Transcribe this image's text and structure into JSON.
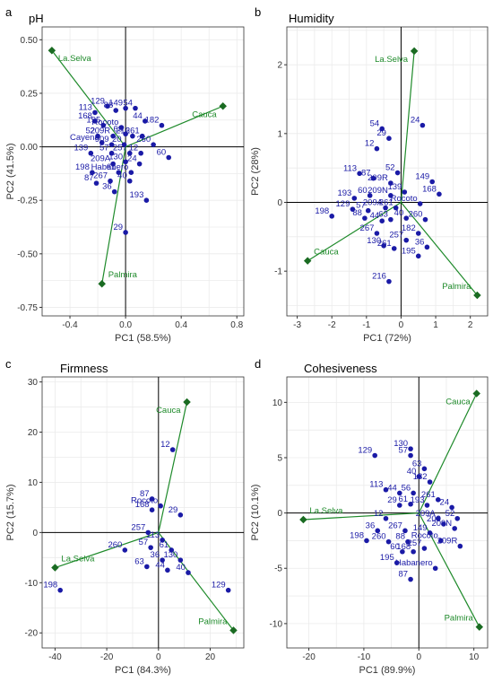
{
  "colors": {
    "points": "#1a1aa6",
    "vectors": "#1e8a2a",
    "grid": "#ebebeb",
    "axis": "#000000"
  },
  "chart_data": [
    {
      "type": "scatter",
      "panel": "a",
      "title": "pH",
      "xlabel": "PC1 (58.5%)",
      "ylabel": "PC2 (41.5%)",
      "xlim": [
        -0.6,
        0.85
      ],
      "ylim": [
        -0.79,
        0.56
      ],
      "xticks": [
        -0.4,
        0.0,
        0.4,
        0.8
      ],
      "xtick_labels": [
        "-0.4",
        "0.0",
        "0.4",
        "0.8"
      ],
      "yticks": [
        -0.75,
        -0.5,
        -0.25,
        0.0,
        0.25,
        0.5
      ],
      "ytick_labels": [
        "-0.75",
        "-0.50",
        "-0.25",
        "0.00",
        "0.25",
        "0.50"
      ],
      "points": [
        {
          "label": "113",
          "x": -0.22,
          "y": 0.16
        },
        {
          "label": "129",
          "x": -0.13,
          "y": 0.19
        },
        {
          "label": "168",
          "x": -0.22,
          "y": 0.12
        },
        {
          "label": "88",
          "x": -0.07,
          "y": 0.17
        },
        {
          "label": "149",
          "x": 0.0,
          "y": 0.18
        },
        {
          "label": "54",
          "x": 0.07,
          "y": 0.18
        },
        {
          "label": "44",
          "x": 0.14,
          "y": 0.12
        },
        {
          "label": "195",
          "x": -0.16,
          "y": 0.1
        },
        {
          "label": "Rocoto",
          "x": -0.03,
          "y": 0.09
        },
        {
          "label": "182",
          "x": 0.26,
          "y": 0.1
        },
        {
          "label": "52",
          "x": -0.2,
          "y": 0.05
        },
        {
          "label": "209R",
          "x": -0.09,
          "y": 0.05
        },
        {
          "label": "63",
          "x": 0.0,
          "y": 0.06
        },
        {
          "label": "216",
          "x": 0.05,
          "y": 0.05
        },
        {
          "label": "261",
          "x": 0.12,
          "y": 0.05
        },
        {
          "label": "Cayena",
          "x": -0.17,
          "y": 0.02
        },
        {
          "label": "909",
          "x": -0.1,
          "y": 0.01
        },
        {
          "label": "20",
          "x": -0.01,
          "y": 0.01
        },
        {
          "label": "260",
          "x": 0.2,
          "y": 0.01
        },
        {
          "label": "139",
          "x": -0.25,
          "y": -0.03
        },
        {
          "label": "57",
          "x": -0.1,
          "y": -0.03
        },
        {
          "label": "257",
          "x": 0.03,
          "y": -0.03
        },
        {
          "label": "12",
          "x": 0.11,
          "y": -0.03
        },
        {
          "label": "60",
          "x": 0.31,
          "y": -0.05
        },
        {
          "label": "209A",
          "x": -0.09,
          "y": -0.08
        },
        {
          "label": "130",
          "x": 0.0,
          "y": -0.07
        },
        {
          "label": "24",
          "x": 0.1,
          "y": -0.08
        },
        {
          "label": "198",
          "x": -0.24,
          "y": -0.12
        },
        {
          "label": "61",
          "x": -0.05,
          "y": -0.12
        },
        {
          "label": "Habanero",
          "x": 0.04,
          "y": -0.12
        },
        {
          "label": "87",
          "x": -0.21,
          "y": -0.17
        },
        {
          "label": "267",
          "x": -0.11,
          "y": -0.16
        },
        {
          "label": "40",
          "x": 0.03,
          "y": -0.16
        },
        {
          "label": "36",
          "x": -0.08,
          "y": -0.21
        },
        {
          "label": "193",
          "x": 0.15,
          "y": -0.25
        },
        {
          "label": "29",
          "x": 0.0,
          "y": -0.4
        }
      ],
      "vectors": [
        {
          "label": "La.Selva",
          "x": -0.53,
          "y": 0.45
        },
        {
          "label": "Cauca",
          "x": 0.7,
          "y": 0.19
        },
        {
          "label": "Palmira",
          "x": -0.17,
          "y": -0.64
        }
      ]
    },
    {
      "type": "scatter",
      "panel": "b",
      "title": "Humidity",
      "xlabel": "PC1 (72%)",
      "ylabel": "PC2 (28%)",
      "xlim": [
        -3.3,
        2.5
      ],
      "ylim": [
        -1.65,
        2.55
      ],
      "xticks": [
        -3,
        -2,
        -1,
        0,
        1,
        2
      ],
      "xtick_labels": [
        "-3",
        "-2",
        "-1",
        "0",
        "1",
        "2"
      ],
      "yticks": [
        -1,
        0,
        1,
        2
      ],
      "ytick_labels": [
        "-1",
        "0",
        "1",
        "2"
      ],
      "points": [
        {
          "label": "54",
          "x": -0.55,
          "y": 1.07
        },
        {
          "label": "29",
          "x": -0.35,
          "y": 0.93
        },
        {
          "label": "24",
          "x": 0.62,
          "y": 1.12
        },
        {
          "label": "12",
          "x": -0.7,
          "y": 0.78
        },
        {
          "label": "113",
          "x": -1.2,
          "y": 0.42
        },
        {
          "label": "52",
          "x": -0.1,
          "y": 0.43
        },
        {
          "label": "87",
          "x": -0.8,
          "y": 0.35
        },
        {
          "label": "209R",
          "x": -0.3,
          "y": 0.28
        },
        {
          "label": "149",
          "x": 0.9,
          "y": 0.3
        },
        {
          "label": "193",
          "x": -1.35,
          "y": 0.06
        },
        {
          "label": "60",
          "x": -0.9,
          "y": 0.1
        },
        {
          "label": "209N",
          "x": -0.3,
          "y": 0.1
        },
        {
          "label": "139",
          "x": 0.1,
          "y": 0.15
        },
        {
          "label": "168",
          "x": 1.1,
          "y": 0.12
        },
        {
          "label": "129",
          "x": -1.4,
          "y": -0.1
        },
        {
          "label": "57",
          "x": -0.95,
          "y": -0.12
        },
        {
          "label": "198",
          "x": -2.0,
          "y": -0.2
        },
        {
          "label": "88",
          "x": -1.05,
          "y": -0.23
        },
        {
          "label": "209A",
          "x": -0.45,
          "y": -0.08
        },
        {
          "label": "261",
          "x": -0.15,
          "y": -0.08
        },
        {
          "label": "Rocoto",
          "x": 0.55,
          "y": -0.02
        },
        {
          "label": "44",
          "x": -0.55,
          "y": -0.27
        },
        {
          "label": "63",
          "x": -0.3,
          "y": -0.25
        },
        {
          "label": "40",
          "x": 0.15,
          "y": -0.23
        },
        {
          "label": "260",
          "x": 0.7,
          "y": -0.25
        },
        {
          "label": "267",
          "x": -0.7,
          "y": -0.45
        },
        {
          "label": "182",
          "x": 0.5,
          "y": -0.45
        },
        {
          "label": "130",
          "x": -0.5,
          "y": -0.63
        },
        {
          "label": "257",
          "x": 0.15,
          "y": -0.55
        },
        {
          "label": "36",
          "x": 0.75,
          "y": -0.65
        },
        {
          "label": "261",
          "x": -0.2,
          "y": -0.67
        },
        {
          "label": "195",
          "x": 0.5,
          "y": -0.78
        },
        {
          "label": "216",
          "x": -0.35,
          "y": -1.15
        }
      ],
      "vectors": [
        {
          "label": "La.Selva",
          "x": 0.38,
          "y": 2.2
        },
        {
          "label": "Cauca",
          "x": -2.7,
          "y": -0.85
        },
        {
          "label": "Palmira",
          "x": 2.2,
          "y": -1.35
        }
      ]
    },
    {
      "type": "scatter",
      "panel": "c",
      "title": "Firmness",
      "xlabel": "PC1 (84.3%)",
      "ylabel": "PC2 (15.7%)",
      "xlim": [
        -45,
        33
      ],
      "ylim": [
        -23,
        31
      ],
      "xticks": [
        -40,
        -20,
        0,
        20
      ],
      "xtick_labels": [
        "-40",
        "-20",
        "0",
        "20"
      ],
      "yticks": [
        -20,
        -10,
        0,
        10,
        20,
        30
      ],
      "ytick_labels": [
        "-20",
        "-10",
        "0",
        "10",
        "20",
        "30"
      ],
      "points": [
        {
          "label": "12",
          "x": 5.5,
          "y": 16.5
        },
        {
          "label": "87",
          "x": -2.5,
          "y": 6.7
        },
        {
          "label": "Rocoto",
          "x": 0.8,
          "y": 5.3
        },
        {
          "label": "168",
          "x": -2.5,
          "y": 4.5
        },
        {
          "label": "29",
          "x": 8.5,
          "y": 3.5
        },
        {
          "label": "257",
          "x": -4.0,
          "y": 0.0
        },
        {
          "label": "113",
          "x": 1.5,
          "y": -1.5
        },
        {
          "label": "260",
          "x": -13.0,
          "y": -3.5
        },
        {
          "label": "57",
          "x": -3.0,
          "y": -3.0
        },
        {
          "label": "61",
          "x": 5.0,
          "y": -3.5
        },
        {
          "label": "36",
          "x": 1.5,
          "y": -5.5
        },
        {
          "label": "130",
          "x": 8.5,
          "y": -5.5
        },
        {
          "label": "63",
          "x": -4.5,
          "y": -6.8
        },
        {
          "label": "44",
          "x": 3.5,
          "y": -7.5
        },
        {
          "label": "40",
          "x": 11.5,
          "y": -8.0
        },
        {
          "label": "129",
          "x": 27.0,
          "y": -11.5
        },
        {
          "label": "198",
          "x": -38.0,
          "y": -11.5
        }
      ],
      "vectors": [
        {
          "label": "Cauca",
          "x": 11.0,
          "y": 26.0
        },
        {
          "label": "La.Selva",
          "x": -40.0,
          "y": -7.0
        },
        {
          "label": "Palmira",
          "x": 29.0,
          "y": -19.5
        }
      ]
    },
    {
      "type": "scatter",
      "panel": "d",
      "title": "Cohesiveness",
      "xlabel": "PC1 (89.9%)",
      "ylabel": "PC2 (10.1%)",
      "xlim": [
        -24,
        12.5
      ],
      "ylim": [
        -12.2,
        12.3
      ],
      "xticks": [
        -20,
        -10,
        0,
        10
      ],
      "xtick_labels": [
        "-20",
        "-10",
        "0",
        "10"
      ],
      "yticks": [
        -10,
        -5,
        0,
        5,
        10
      ],
      "ytick_labels": [
        "-10",
        "-5",
        "0",
        "5",
        "10"
      ],
      "points": [
        {
          "label": "130",
          "x": -1.5,
          "y": 5.8
        },
        {
          "label": "57",
          "x": -1.5,
          "y": 5.2
        },
        {
          "label": "129",
          "x": -8.0,
          "y": 5.2
        },
        {
          "label": "63",
          "x": 1.0,
          "y": 4.0
        },
        {
          "label": "40",
          "x": 0.0,
          "y": 3.3
        },
        {
          "label": "182",
          "x": 2.0,
          "y": 2.8
        },
        {
          "label": "113",
          "x": -6.0,
          "y": 2.1
        },
        {
          "label": "44",
          "x": -3.5,
          "y": 1.8
        },
        {
          "label": "56",
          "x": -1.0,
          "y": 1.8
        },
        {
          "label": "261",
          "x": 3.5,
          "y": 1.2
        },
        {
          "label": "29",
          "x": -3.5,
          "y": 0.7
        },
        {
          "label": "61",
          "x": -1.5,
          "y": 0.8
        },
        {
          "label": "193",
          "x": 1.5,
          "y": 0.7
        },
        {
          "label": "24",
          "x": 6.0,
          "y": 0.5
        },
        {
          "label": "12",
          "x": -6.0,
          "y": -0.5
        },
        {
          "label": "209A",
          "x": 3.5,
          "y": -0.5
        },
        {
          "label": "52",
          "x": 7.0,
          "y": -0.5
        },
        {
          "label": "36",
          "x": -7.5,
          "y": -1.6
        },
        {
          "label": "267",
          "x": -2.5,
          "y": -1.6
        },
        {
          "label": "209N",
          "x": 6.5,
          "y": -1.4
        },
        {
          "label": "198",
          "x": -9.5,
          "y": -2.5
        },
        {
          "label": "260",
          "x": -5.5,
          "y": -2.6
        },
        {
          "label": "88",
          "x": -2.0,
          "y": -2.6
        },
        {
          "label": "149",
          "x": 2.0,
          "y": -1.8
        },
        {
          "label": "Rocoto",
          "x": 4.0,
          "y": -2.5
        },
        {
          "label": "209R",
          "x": 7.5,
          "y": -3.0
        },
        {
          "label": "257",
          "x": 1.0,
          "y": -3.2
        },
        {
          "label": "60",
          "x": -3.0,
          "y": -3.5
        },
        {
          "label": "168",
          "x": -1.0,
          "y": -3.5
        },
        {
          "label": "195",
          "x": -4.0,
          "y": -4.5
        },
        {
          "label": "87",
          "x": -1.5,
          "y": -6.0
        },
        {
          "label": "Habanero",
          "x": 3.0,
          "y": -5.0
        },
        {
          "label": "209",
          "x": 4.5,
          "y": -1.0
        }
      ],
      "vectors": [
        {
          "label": "Cauca",
          "x": 10.5,
          "y": 10.8
        },
        {
          "label": "La.Selva",
          "x": -21.0,
          "y": -0.6
        },
        {
          "label": "Palmira",
          "x": 11.0,
          "y": -10.3
        }
      ]
    }
  ]
}
